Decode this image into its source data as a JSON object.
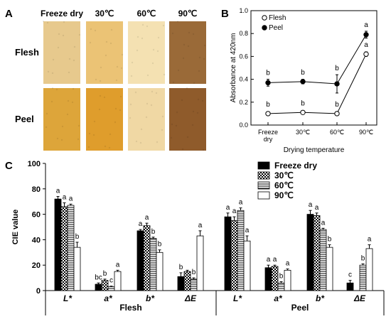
{
  "panel_a": {
    "letter": "A",
    "columns": [
      "Freeze dry",
      "30℃",
      "60℃",
      "90℃"
    ],
    "rows": [
      "Flesh",
      "Peel"
    ],
    "swatch_colors": [
      [
        "#e7c98d",
        "#ebc375",
        "#f4e1b2",
        "#9a6a38"
      ],
      [
        "#dda53a",
        "#df9d2c",
        "#f0d8a4",
        "#8f5b2b"
      ]
    ]
  },
  "chart_data": [
    {
      "panel": "B",
      "type": "line",
      "categories": [
        "Freeze dry",
        "30℃",
        "60℃",
        "90℃"
      ],
      "category_lines": [
        [
          "Freeze",
          "dry"
        ],
        [
          "30℃"
        ],
        [
          "60℃"
        ],
        [
          "90℃"
        ]
      ],
      "xlabel": "Drying temperature",
      "ylabel": "Absorbance at 420nm",
      "ylim": [
        0.0,
        1.0
      ],
      "yticks": [
        "0.0",
        "0.2",
        "0.4",
        "0.6",
        "0.8",
        "1.0"
      ],
      "legend_placement": "top-left",
      "series": [
        {
          "name": "Flesh",
          "marker": "open-circle",
          "values": [
            0.1,
            0.11,
            0.1,
            0.62
          ],
          "errors": [
            0.01,
            0.01,
            0.01,
            0.02
          ],
          "letters": [
            "b",
            "b",
            "b",
            "a"
          ]
        },
        {
          "name": "Peel",
          "marker": "filled-circle",
          "values": [
            0.37,
            0.38,
            0.36,
            0.79
          ],
          "errors": [
            0.03,
            0.02,
            0.08,
            0.03
          ],
          "letters": [
            "b",
            "b",
            "b",
            "a"
          ]
        }
      ]
    },
    {
      "panel": "C",
      "type": "bar",
      "ylabel": "CIE value",
      "ylim": [
        0,
        100
      ],
      "yticks": [
        "0",
        "20",
        "40",
        "60",
        "80",
        "100"
      ],
      "groups": [
        "Flesh",
        "Peel"
      ],
      "categories": [
        "L*",
        "a*",
        "b*",
        "ΔE",
        "L*",
        "a*",
        "b*",
        "ΔE"
      ],
      "legend_placement": "top-center",
      "series": [
        {
          "name": "Freeze dry",
          "pattern": "solid-black",
          "values": [
            72,
            5,
            47,
            11,
            58,
            18,
            60,
            6
          ],
          "errors": [
            2,
            1,
            1,
            3,
            3,
            2,
            3,
            2
          ],
          "letters": [
            "a",
            "bc",
            "a",
            "b",
            "a",
            "a",
            "a",
            "c"
          ]
        },
        {
          "name": "30℃",
          "pattern": "checker",
          "values": [
            66,
            8,
            51,
            15,
            55,
            19,
            59,
            0
          ],
          "errors": [
            3,
            1,
            2,
            1,
            3,
            1,
            2,
            0
          ],
          "letters": [
            "a",
            "b",
            "a",
            "",
            "a",
            "a",
            "a",
            ""
          ]
        },
        {
          "name": "60℃",
          "pattern": "hlines",
          "values": [
            67,
            3,
            41,
            9,
            63,
            6,
            48,
            20
          ],
          "errors": [
            1,
            0.5,
            1,
            1,
            2,
            1,
            1,
            1
          ],
          "letters": [
            "a",
            "c",
            "b",
            "b",
            "a",
            "b",
            "a",
            "b"
          ]
        },
        {
          "name": "90℃",
          "pattern": "white",
          "values": [
            34,
            15,
            30,
            43,
            39,
            16,
            34,
            33
          ],
          "errors": [
            4,
            1,
            2,
            4,
            4,
            1,
            2,
            3
          ],
          "letters": [
            "b",
            "a",
            "b",
            "a",
            "a",
            "a",
            "b",
            "a"
          ]
        }
      ]
    }
  ]
}
